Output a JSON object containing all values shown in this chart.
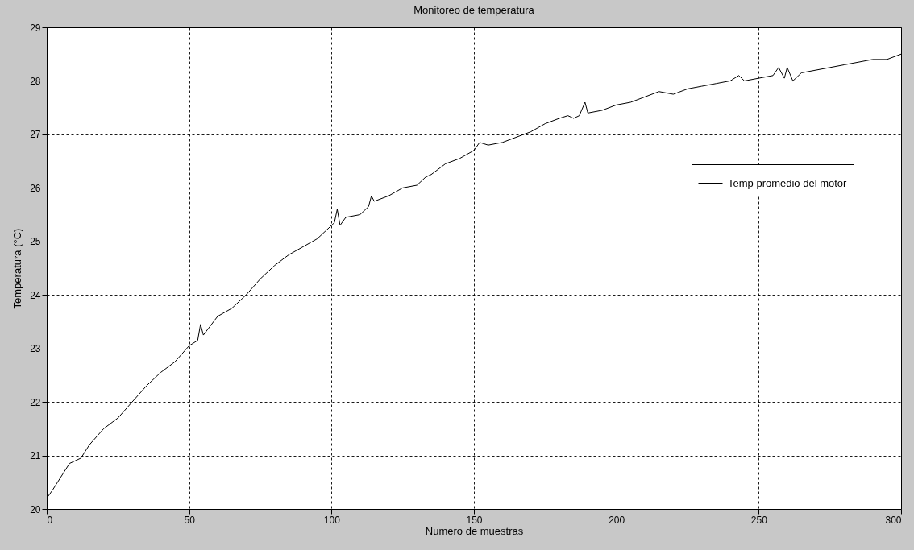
{
  "chart_data": {
    "type": "line",
    "title": "Monitoreo de temperatura",
    "xlabel": "Numero de muestras",
    "ylabel": "Temperatura (°C)",
    "x": [
      0,
      2,
      5,
      8,
      12,
      15,
      20,
      25,
      30,
      35,
      40,
      45,
      50,
      53,
      54,
      55,
      60,
      65,
      70,
      75,
      80,
      85,
      90,
      95,
      100,
      101,
      102,
      103,
      105,
      110,
      113,
      114,
      115,
      120,
      125,
      130,
      133,
      135,
      140,
      145,
      150,
      152,
      155,
      160,
      165,
      170,
      175,
      180,
      183,
      185,
      187,
      189,
      190,
      195,
      200,
      205,
      210,
      215,
      220,
      225,
      230,
      235,
      240,
      243,
      245,
      250,
      255,
      257,
      259,
      260,
      262,
      265,
      270,
      275,
      280,
      285,
      290,
      295,
      300
    ],
    "series": [
      {
        "name": "Temp promedio del motor",
        "color": "#000000",
        "values": [
          20.2,
          20.35,
          20.6,
          20.85,
          20.95,
          21.2,
          21.5,
          21.7,
          22.0,
          22.3,
          22.55,
          22.75,
          23.05,
          23.15,
          23.45,
          23.25,
          23.6,
          23.75,
          24.0,
          24.3,
          24.55,
          24.75,
          24.9,
          25.05,
          25.3,
          25.35,
          25.6,
          25.3,
          25.45,
          25.5,
          25.65,
          25.85,
          25.75,
          25.85,
          26.0,
          26.05,
          26.2,
          26.25,
          26.45,
          26.55,
          26.7,
          26.85,
          26.8,
          26.85,
          26.95,
          27.05,
          27.2,
          27.3,
          27.35,
          27.3,
          27.35,
          27.6,
          27.4,
          27.45,
          27.55,
          27.6,
          27.7,
          27.8,
          27.75,
          27.85,
          27.9,
          27.95,
          28.0,
          28.1,
          28.0,
          28.05,
          28.1,
          28.25,
          28.05,
          28.25,
          28.0,
          28.15,
          28.2,
          28.25,
          28.3,
          28.35,
          28.4,
          28.4,
          28.5
        ]
      }
    ],
    "xlim": [
      0,
      300
    ],
    "xticks": [
      0,
      50,
      100,
      150,
      200,
      250,
      300
    ],
    "ylim": [
      20,
      29
    ],
    "yticks": [
      20,
      21,
      22,
      23,
      24,
      25,
      26,
      27,
      28,
      29
    ],
    "grid": true,
    "legend": "right",
    "line_style": "solid",
    "marker": "none"
  }
}
